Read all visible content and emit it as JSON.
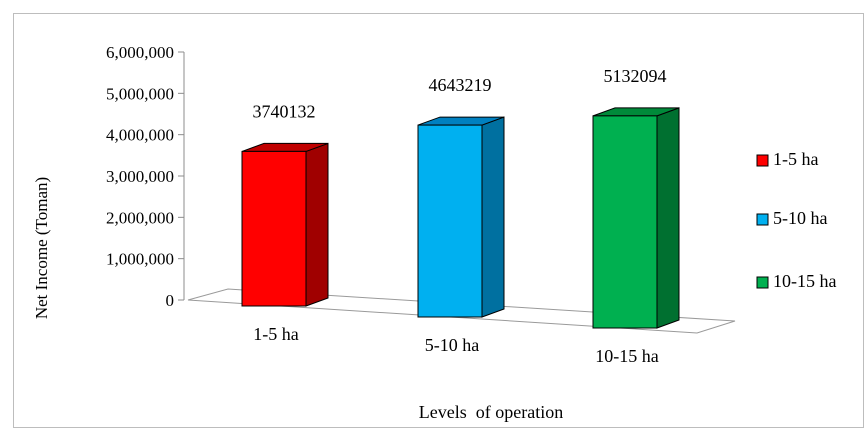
{
  "chart_data": {
    "type": "bar",
    "categories": [
      "1-5 ha",
      "5-10 ha",
      "10-15 ha"
    ],
    "values": [
      3740132,
      4643219,
      5132094
    ],
    "data_labels": [
      "3740132",
      "4643219",
      "5132094"
    ],
    "xlabel": "Levels  of operation",
    "ylabel": "Net Income  (Toman)",
    "ylim": [
      0,
      6000000
    ],
    "yticks": [
      0,
      1000000,
      2000000,
      3000000,
      4000000,
      5000000,
      6000000
    ],
    "ytick_labels": [
      "0",
      "1,000,000",
      "2,000,000",
      "3,000,000",
      "4,000,000",
      "5,000,000",
      "6,000,000"
    ],
    "legend": {
      "placement": "right",
      "entries": [
        "1-5 ha",
        "5-10 ha",
        "10-15 ha"
      ]
    },
    "colors": {
      "front": [
        "#ff0000",
        "#00b0f0",
        "#00b050"
      ],
      "side": [
        "#a00000",
        "#0070a0",
        "#007030"
      ],
      "top": [
        "#c00000",
        "#0080c0",
        "#008a3a"
      ]
    },
    "grid": false,
    "style": "3d-column"
  }
}
